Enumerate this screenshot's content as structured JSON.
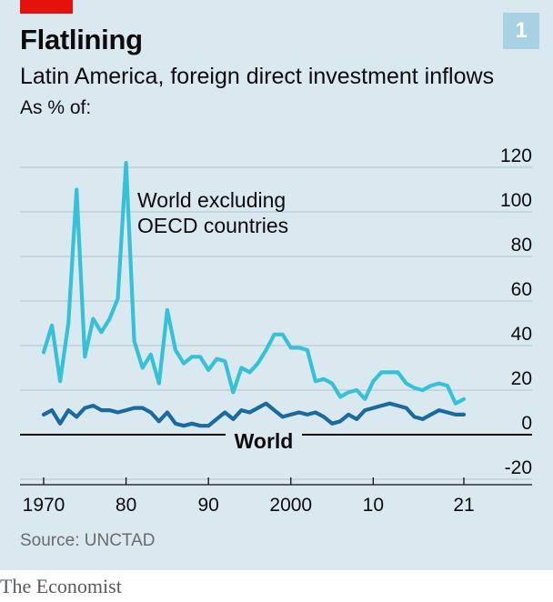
{
  "header": {
    "title": "Flatlining",
    "chart_number": "1",
    "subtitle": "Latin America, foreign direct investment inflows",
    "unit_label": "As % of:"
  },
  "footer": {
    "source": "Source: UNCTAD",
    "brand": "The Economist"
  },
  "colors": {
    "background": "#dae8f0",
    "accent_red": "#e3120b",
    "series_light": "#36c1d9",
    "series_dark": "#1a6aa0",
    "gridline": "#b9cad3",
    "zero_line": "#0c0c0c"
  },
  "chart_data": {
    "type": "line",
    "x_ticks": [
      1970,
      1980,
      1990,
      2000,
      2010,
      2021
    ],
    "x_tick_labels": [
      "1970",
      "80",
      "90",
      "2000",
      "10",
      "21"
    ],
    "y_ticks": [
      -20,
      0,
      20,
      40,
      60,
      80,
      100,
      120
    ],
    "y_tick_labels": [
      "-20",
      "0",
      "20",
      "40",
      "60",
      "80",
      "100",
      "120"
    ],
    "xlim": [
      1970,
      2021
    ],
    "ylim": [
      -20,
      120
    ],
    "grid": true,
    "y_axis_side": "right",
    "series": [
      {
        "name": "World excluding OECD countries",
        "color": "#36c1d9",
        "x": [
          1970,
          1971,
          1972,
          1973,
          1974,
          1975,
          1976,
          1977,
          1978,
          1979,
          1980,
          1981,
          1982,
          1983,
          1984,
          1985,
          1986,
          1987,
          1988,
          1989,
          1990,
          1991,
          1992,
          1993,
          1994,
          1995,
          1996,
          1997,
          1998,
          1999,
          2000,
          2001,
          2002,
          2003,
          2004,
          2005,
          2006,
          2007,
          2008,
          2009,
          2010,
          2011,
          2012,
          2013,
          2014,
          2015,
          2016,
          2017,
          2018,
          2019,
          2020,
          2021
        ],
        "values": [
          37,
          49,
          24,
          50,
          110,
          35,
          52,
          46,
          52,
          61,
          122,
          42,
          30,
          36,
          23,
          56,
          38,
          32,
          35,
          35,
          29,
          34,
          33,
          19,
          30,
          28,
          32,
          38,
          45,
          45,
          39,
          39,
          38,
          24,
          25,
          23,
          17,
          19,
          20,
          16,
          24,
          28,
          28,
          28,
          23,
          21,
          20,
          22,
          23,
          22,
          14,
          16
        ]
      },
      {
        "name": "World",
        "color": "#1a6aa0",
        "x": [
          1970,
          1971,
          1972,
          1973,
          1974,
          1975,
          1976,
          1977,
          1978,
          1979,
          1980,
          1981,
          1982,
          1983,
          1984,
          1985,
          1986,
          1987,
          1988,
          1989,
          1990,
          1991,
          1992,
          1993,
          1994,
          1995,
          1996,
          1997,
          1998,
          1999,
          2000,
          2001,
          2002,
          2003,
          2004,
          2005,
          2006,
          2007,
          2008,
          2009,
          2010,
          2011,
          2012,
          2013,
          2014,
          2015,
          2016,
          2017,
          2018,
          2019,
          2020,
          2021
        ],
        "values": [
          9,
          11,
          5,
          11,
          8,
          12,
          13,
          11,
          11,
          10,
          11,
          12,
          12,
          10,
          6,
          10,
          5,
          4,
          5,
          4,
          4,
          7,
          10,
          7,
          11,
          10,
          12,
          14,
          11,
          8,
          9,
          10,
          9,
          10,
          8,
          5,
          6,
          9,
          7,
          11,
          12,
          13,
          14,
          13,
          12,
          8,
          7,
          9,
          11,
          10,
          9,
          9
        ]
      }
    ]
  }
}
